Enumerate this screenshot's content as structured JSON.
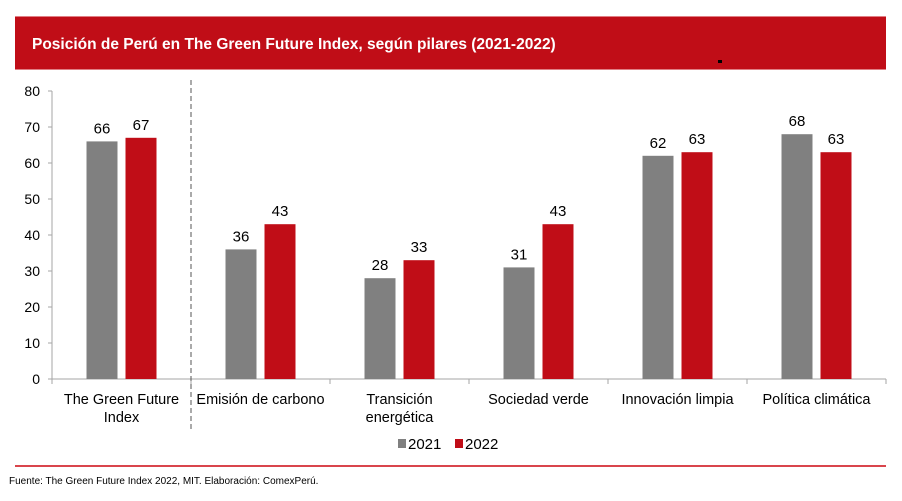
{
  "chart_data": {
    "type": "bar",
    "title": "Posición de Perú en The Green Future Index, según pilares (2021-2022)",
    "categories": [
      "The Green Future Index",
      "Emisión de carbono",
      "Transición energética",
      "Sociedad verde",
      "Innovación limpia",
      "Política climática"
    ],
    "category_lines": [
      [
        "The Green Future",
        "Index"
      ],
      [
        "Emisión de carbono"
      ],
      [
        "Transición",
        "energética"
      ],
      [
        "Sociedad verde"
      ],
      [
        "Innovación limpia"
      ],
      [
        "Política climática"
      ]
    ],
    "series": [
      {
        "name": "2021",
        "color": "#808080",
        "values": [
          66,
          36,
          28,
          31,
          62,
          68
        ]
      },
      {
        "name": "2022",
        "color": "#c00d17",
        "values": [
          67,
          43,
          33,
          43,
          63,
          63
        ]
      }
    ],
    "ylim": [
      0,
      80
    ],
    "yticks": [
      "0",
      "10",
      "20",
      "30",
      "40",
      "50",
      "60",
      "70",
      "80"
    ],
    "xlabel": "",
    "ylabel": "",
    "grid": false,
    "legend": "bottom-center"
  },
  "source": "Fuente: The Green Future Index 2022, MIT. Elaboración: ComexPerú."
}
